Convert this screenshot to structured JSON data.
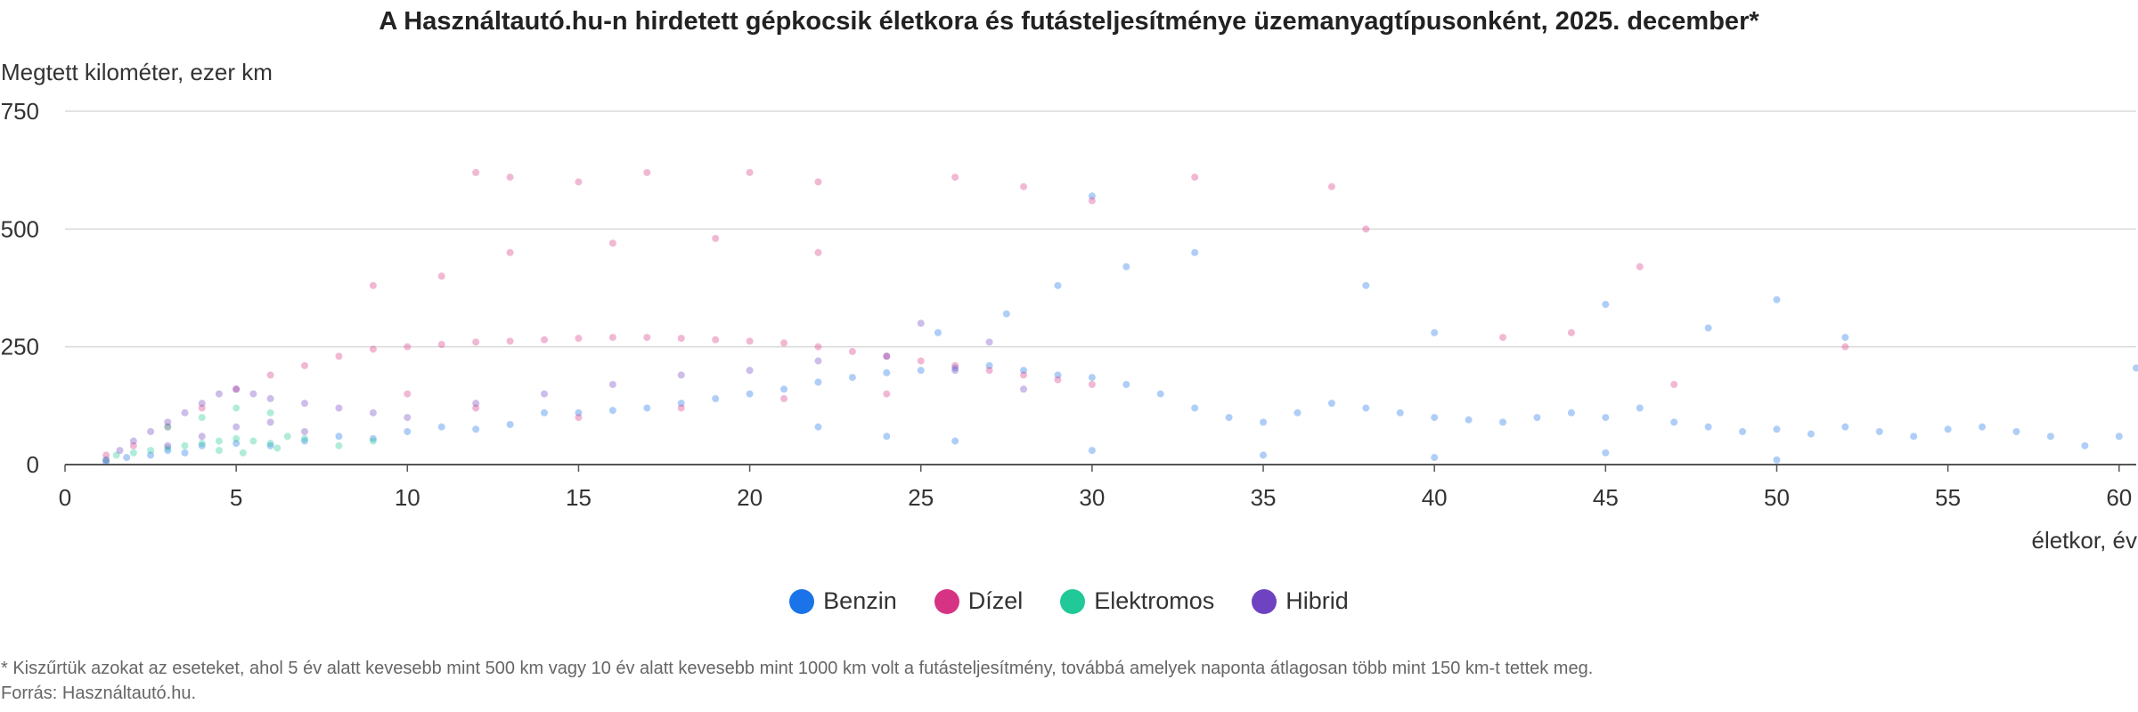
{
  "chart_data": {
    "type": "scatter",
    "title": "A Használtautó.hu-n hirdetett gépkocsik életkora és futásteljesítménye üzemanyagtípusonként, 2025. december*",
    "ylabel": "Megtett kilométer, ezer km",
    "xlabel": "életkor, év",
    "xlim": [
      0,
      60.5
    ],
    "ylim": [
      0,
      750
    ],
    "x_ticks": [
      0,
      5,
      10,
      15,
      20,
      25,
      30,
      35,
      40,
      45,
      50,
      55,
      60
    ],
    "y_ticks": [
      0,
      250,
      500,
      750
    ],
    "x_tick_labels": [
      "0",
      "5",
      "10",
      "15",
      "20",
      "25",
      "30",
      "35",
      "40",
      "45",
      "50",
      "55",
      "60"
    ],
    "y_tick_labels": [
      "0",
      "250",
      "500",
      "750"
    ],
    "grid": "horizontal",
    "legend_position": "bottom-center",
    "series": [
      {
        "name": "Benzin",
        "color": "#1a73e8",
        "points": [
          [
            1.2,
            5
          ],
          [
            1.8,
            15
          ],
          [
            2.5,
            20
          ],
          [
            3,
            30
          ],
          [
            3.5,
            25
          ],
          [
            4,
            40
          ],
          [
            5,
            45
          ],
          [
            6,
            40
          ],
          [
            7,
            50
          ],
          [
            8,
            60
          ],
          [
            9,
            55
          ],
          [
            10,
            70
          ],
          [
            11,
            80
          ],
          [
            12,
            75
          ],
          [
            13,
            85
          ],
          [
            14,
            110
          ],
          [
            15,
            110
          ],
          [
            16,
            115
          ],
          [
            17,
            120
          ],
          [
            18,
            130
          ],
          [
            19,
            140
          ],
          [
            20,
            150
          ],
          [
            21,
            160
          ],
          [
            22,
            175
          ],
          [
            23,
            185
          ],
          [
            24,
            195
          ],
          [
            25,
            200
          ],
          [
            26,
            205
          ],
          [
            27,
            210
          ],
          [
            28,
            200
          ],
          [
            29,
            190
          ],
          [
            30,
            185
          ],
          [
            31,
            170
          ],
          [
            32,
            150
          ],
          [
            33,
            120
          ],
          [
            34,
            100
          ],
          [
            35,
            90
          ],
          [
            36,
            110
          ],
          [
            37,
            130
          ],
          [
            38,
            120
          ],
          [
            39,
            110
          ],
          [
            40,
            100
          ],
          [
            41,
            95
          ],
          [
            42,
            90
          ],
          [
            43,
            100
          ],
          [
            44,
            110
          ],
          [
            45,
            100
          ],
          [
            46,
            120
          ],
          [
            47,
            90
          ],
          [
            48,
            80
          ],
          [
            49,
            70
          ],
          [
            50,
            75
          ],
          [
            51,
            65
          ],
          [
            52,
            80
          ],
          [
            53,
            70
          ],
          [
            54,
            60
          ],
          [
            55,
            75
          ],
          [
            56,
            80
          ],
          [
            57,
            70
          ],
          [
            58,
            60
          ],
          [
            59,
            40
          ],
          [
            60,
            60
          ],
          [
            60.5,
            205
          ],
          [
            50,
            350
          ],
          [
            52,
            270
          ],
          [
            48,
            290
          ],
          [
            45,
            340
          ],
          [
            40,
            280
          ],
          [
            38,
            380
          ],
          [
            33,
            450
          ],
          [
            30,
            570
          ],
          [
            31,
            420
          ],
          [
            29,
            380
          ],
          [
            27.5,
            320
          ],
          [
            25.5,
            280
          ],
          [
            26,
            50
          ],
          [
            24,
            60
          ],
          [
            22,
            80
          ],
          [
            30,
            30
          ],
          [
            35,
            20
          ],
          [
            40,
            15
          ],
          [
            45,
            25
          ],
          [
            50,
            10
          ]
        ]
      },
      {
        "name": "Dízel",
        "color": "#d63384",
        "points": [
          [
            1.2,
            20
          ],
          [
            2,
            40
          ],
          [
            3,
            80
          ],
          [
            4,
            120
          ],
          [
            5,
            160
          ],
          [
            6,
            190
          ],
          [
            7,
            210
          ],
          [
            8,
            230
          ],
          [
            9,
            245
          ],
          [
            10,
            250
          ],
          [
            11,
            255
          ],
          [
            12,
            260
          ],
          [
            13,
            262
          ],
          [
            14,
            265
          ],
          [
            15,
            268
          ],
          [
            16,
            270
          ],
          [
            17,
            270
          ],
          [
            18,
            268
          ],
          [
            19,
            265
          ],
          [
            20,
            262
          ],
          [
            21,
            258
          ],
          [
            22,
            250
          ],
          [
            23,
            240
          ],
          [
            24,
            230
          ],
          [
            25,
            220
          ],
          [
            26,
            210
          ],
          [
            27,
            200
          ],
          [
            28,
            190
          ],
          [
            29,
            180
          ],
          [
            30,
            170
          ],
          [
            12,
            620
          ],
          [
            13,
            610
          ],
          [
            15,
            600
          ],
          [
            17,
            620
          ],
          [
            20,
            620
          ],
          [
            22,
            600
          ],
          [
            26,
            610
          ],
          [
            28,
            590
          ],
          [
            30,
            560
          ],
          [
            33,
            610
          ],
          [
            37,
            590
          ],
          [
            38,
            500
          ],
          [
            46,
            420
          ],
          [
            42,
            270
          ],
          [
            44,
            280
          ],
          [
            47,
            170
          ],
          [
            52,
            250
          ],
          [
            11,
            400
          ],
          [
            13,
            450
          ],
          [
            16,
            470
          ],
          [
            19,
            480
          ],
          [
            22,
            450
          ],
          [
            9,
            380
          ],
          [
            15,
            100
          ],
          [
            18,
            120
          ],
          [
            21,
            140
          ],
          [
            24,
            150
          ],
          [
            10,
            150
          ],
          [
            12,
            120
          ]
        ]
      },
      {
        "name": "Elektromos",
        "color": "#20c997",
        "points": [
          [
            1.2,
            10
          ],
          [
            1.5,
            20
          ],
          [
            2,
            25
          ],
          [
            2.5,
            30
          ],
          [
            3,
            35
          ],
          [
            3.5,
            40
          ],
          [
            4,
            45
          ],
          [
            4.5,
            50
          ],
          [
            5,
            55
          ],
          [
            5.5,
            50
          ],
          [
            6,
            45
          ],
          [
            6.5,
            60
          ],
          [
            7,
            55
          ],
          [
            8,
            40
          ],
          [
            9,
            50
          ],
          [
            3,
            80
          ],
          [
            4,
            100
          ],
          [
            5,
            120
          ],
          [
            6,
            110
          ],
          [
            4.5,
            30
          ],
          [
            5.2,
            25
          ],
          [
            6.2,
            35
          ]
        ]
      },
      {
        "name": "Hibrid",
        "color": "#6f42c1",
        "points": [
          [
            1.2,
            10
          ],
          [
            1.6,
            30
          ],
          [
            2,
            50
          ],
          [
            2.5,
            70
          ],
          [
            3,
            90
          ],
          [
            3.5,
            110
          ],
          [
            4,
            130
          ],
          [
            4.5,
            150
          ],
          [
            5,
            160
          ],
          [
            5.5,
            150
          ],
          [
            6,
            140
          ],
          [
            7,
            130
          ],
          [
            8,
            120
          ],
          [
            9,
            110
          ],
          [
            10,
            100
          ],
          [
            12,
            130
          ],
          [
            14,
            150
          ],
          [
            16,
            170
          ],
          [
            18,
            190
          ],
          [
            20,
            200
          ],
          [
            22,
            220
          ],
          [
            24,
            230
          ],
          [
            26,
            200
          ],
          [
            28,
            160
          ],
          [
            3,
            40
          ],
          [
            4,
            60
          ],
          [
            5,
            80
          ],
          [
            6,
            90
          ],
          [
            7,
            70
          ],
          [
            25,
            300
          ],
          [
            27,
            260
          ]
        ]
      }
    ],
    "footnote": "* Kiszűrtük azokat az eseteket, ahol 5 év alatt kevesebb mint 500 km vagy 10 év alatt kevesebb mint 1000 km volt a futásteljesítmény, továbbá amelyek naponta átlagosan több mint 150 km-t tettek meg.",
    "source": "Forrás: Használtautó.hu."
  }
}
